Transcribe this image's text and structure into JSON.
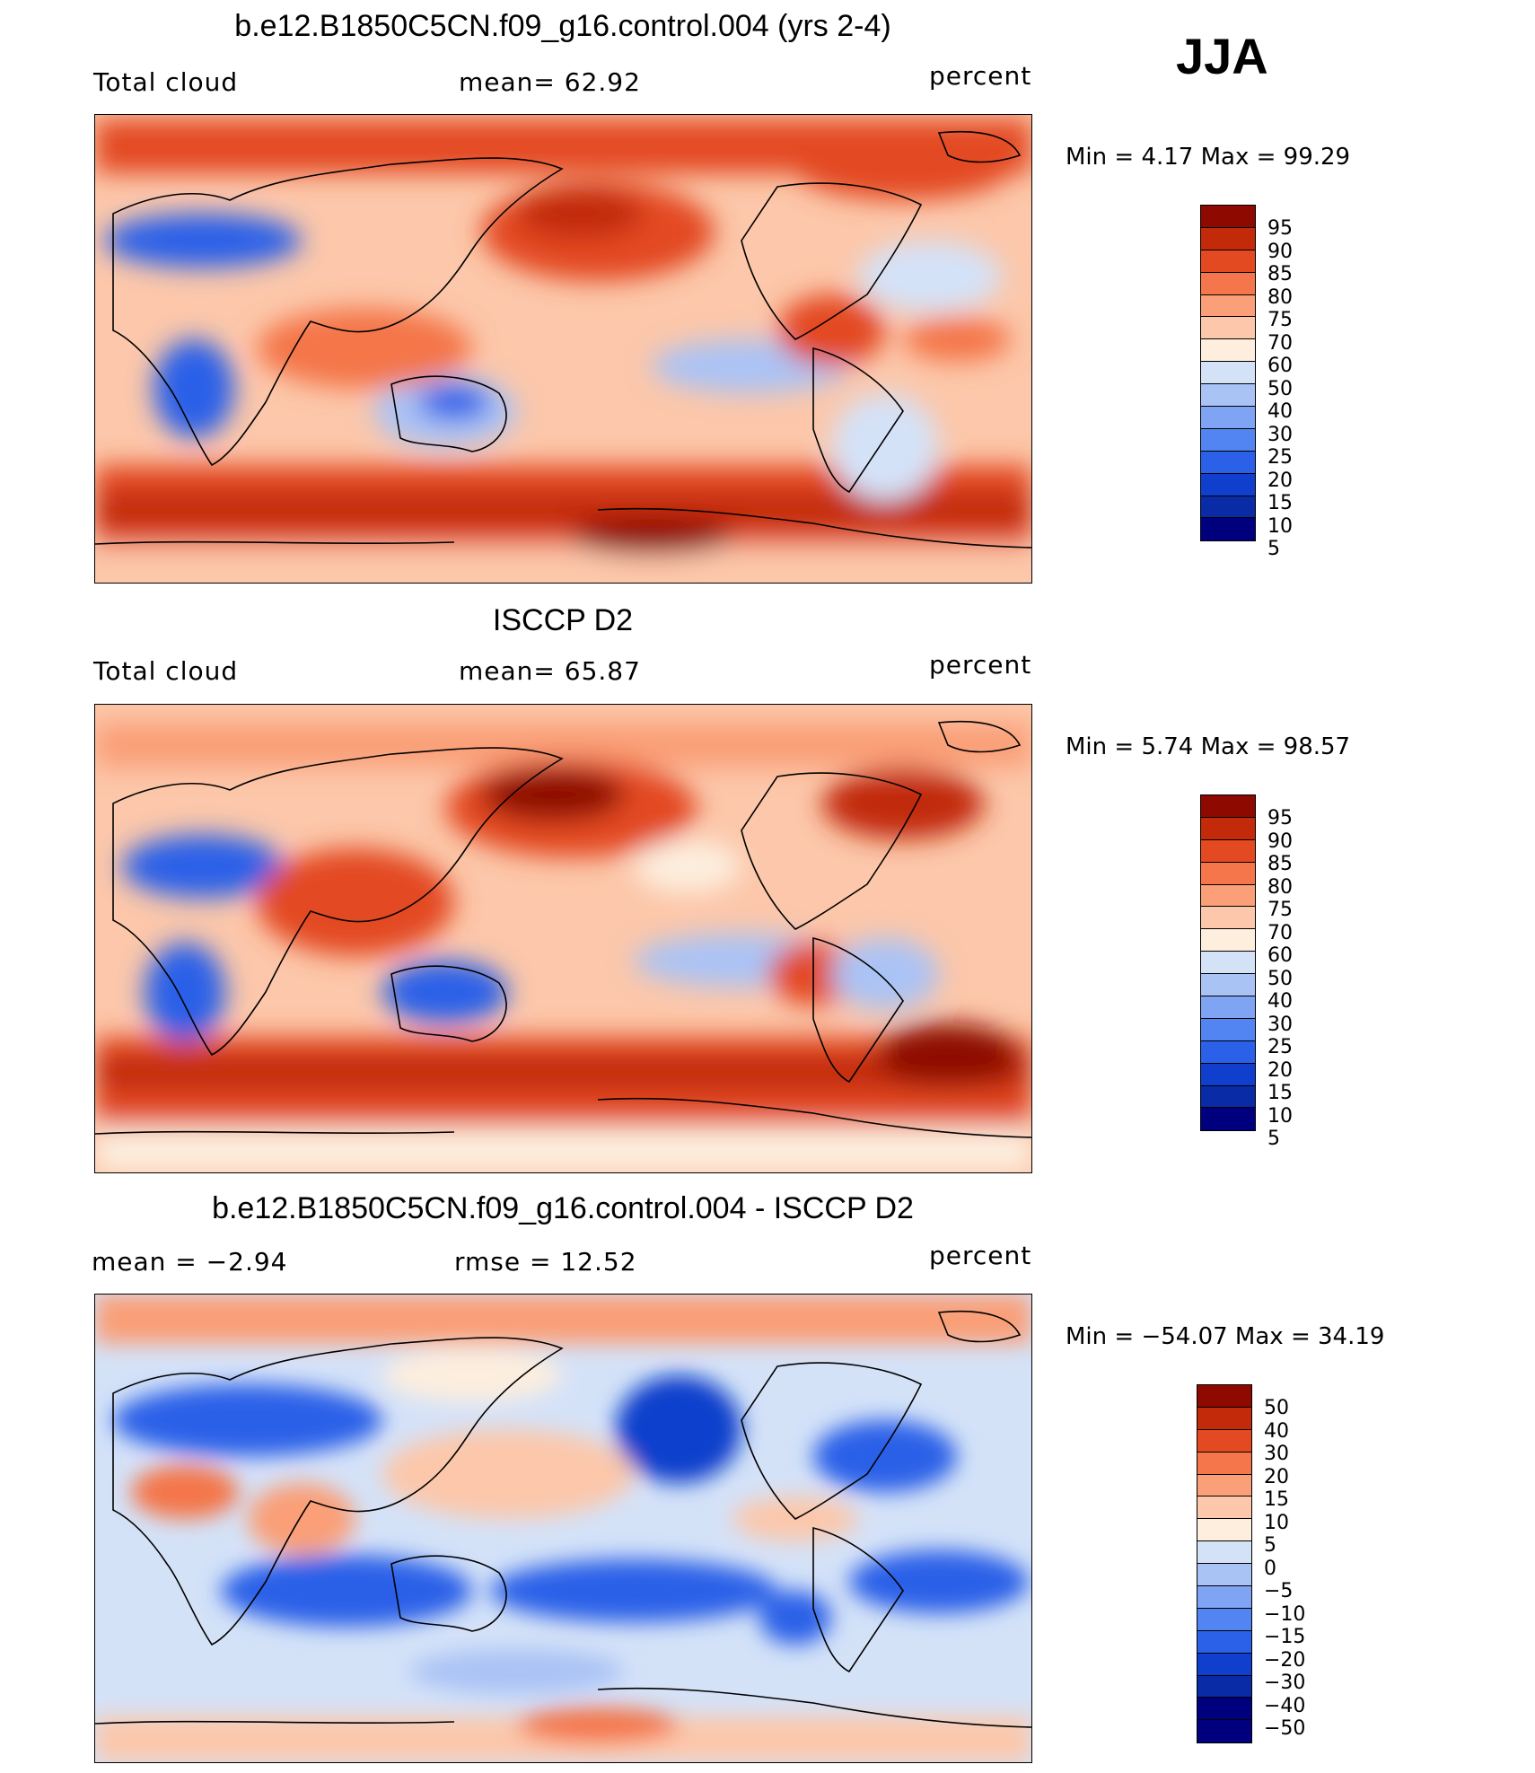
{
  "season": "JJA",
  "palette": [
    "#00007f",
    "#0a2ba6",
    "#0f3fcc",
    "#2b60e8",
    "#5385f2",
    "#7fa4f4",
    "#aac3f5",
    "#d4e2f8",
    "#fdeede",
    "#fcc7aa",
    "#fa9f77",
    "#f4764a",
    "#e34a22",
    "#c22a0a",
    "#8e0a00"
  ],
  "panels": [
    {
      "title": "b.e12.B1850C5CN.f09_g16.control.004 (yrs 2-4)",
      "left_label": "Total cloud",
      "stat1": "mean=   62.92",
      "stat2": "",
      "units": "percent",
      "minmax": "Min =     4.17  Max =    99.29",
      "colorbar_labels": [
        "95",
        "90",
        "85",
        "80",
        "75",
        "70",
        "60",
        "50",
        "40",
        "30",
        "25",
        "20",
        "15",
        "10",
        "5"
      ]
    },
    {
      "title": "ISCCP D2",
      "left_label": "Total cloud",
      "stat1": "mean=   65.87",
      "stat2": "",
      "units": "percent",
      "minmax": "Min =     5.74  Max =    98.57",
      "colorbar_labels": [
        "95",
        "90",
        "85",
        "80",
        "75",
        "70",
        "60",
        "50",
        "40",
        "30",
        "25",
        "20",
        "15",
        "10",
        "5"
      ]
    },
    {
      "title": "b.e12.B1850C5CN.f09_g16.control.004 - ISCCP D2",
      "left_label": "mean =   −2.94",
      "stat1": "rmse =    12.52",
      "stat2": "",
      "units": "percent",
      "minmax": "Min =  −54.07  Max =    34.19",
      "colorbar_labels": [
        "50",
        "40",
        "30",
        "20",
        "15",
        "10",
        "5",
        "0",
        "−5",
        "−10",
        "−15",
        "−20",
        "−30",
        "−40",
        "−50"
      ]
    }
  ]
}
